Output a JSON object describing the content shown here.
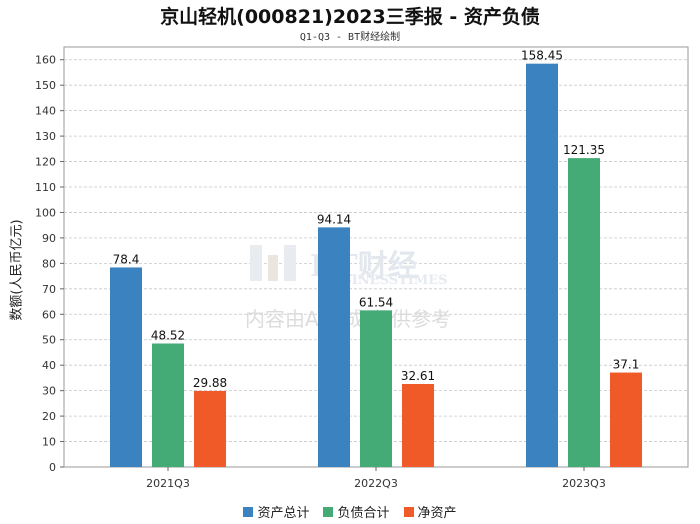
{
  "chart_data": {
    "type": "bar",
    "title": "京山轻机(000821)2023三季报 - 资产负债",
    "subtitle": "Q1-Q3 - BT财经绘制",
    "xlabel": "",
    "ylabel": "数额(人民币亿元)",
    "ylim": [
      0,
      165
    ],
    "yticks": [
      0,
      10,
      20,
      30,
      40,
      50,
      60,
      70,
      80,
      90,
      100,
      110,
      120,
      130,
      140,
      150,
      160
    ],
    "categories": [
      "2021Q3",
      "2022Q3",
      "2023Q3"
    ],
    "series": [
      {
        "name": "资产总计",
        "color": "#3a83c0",
        "values": [
          78.4,
          94.14,
          158.45
        ],
        "labels": [
          "78.4",
          "94.14",
          "158.45"
        ]
      },
      {
        "name": "负债合计",
        "color": "#45ab76",
        "values": [
          48.52,
          61.54,
          121.35
        ],
        "labels": [
          "48.52",
          "61.54",
          "121.35"
        ]
      },
      {
        "name": "净资产",
        "color": "#f05a28",
        "values": [
          29.88,
          32.61,
          37.1
        ],
        "labels": [
          "29.88",
          "32.61",
          "37.1"
        ]
      }
    ],
    "grid": true,
    "legend_position": "bottom-center"
  },
  "watermark": {
    "brand": "BT财经",
    "brand_en": "BUSINESSTIMES",
    "notice": "内容由AI生成,仅供参考"
  }
}
